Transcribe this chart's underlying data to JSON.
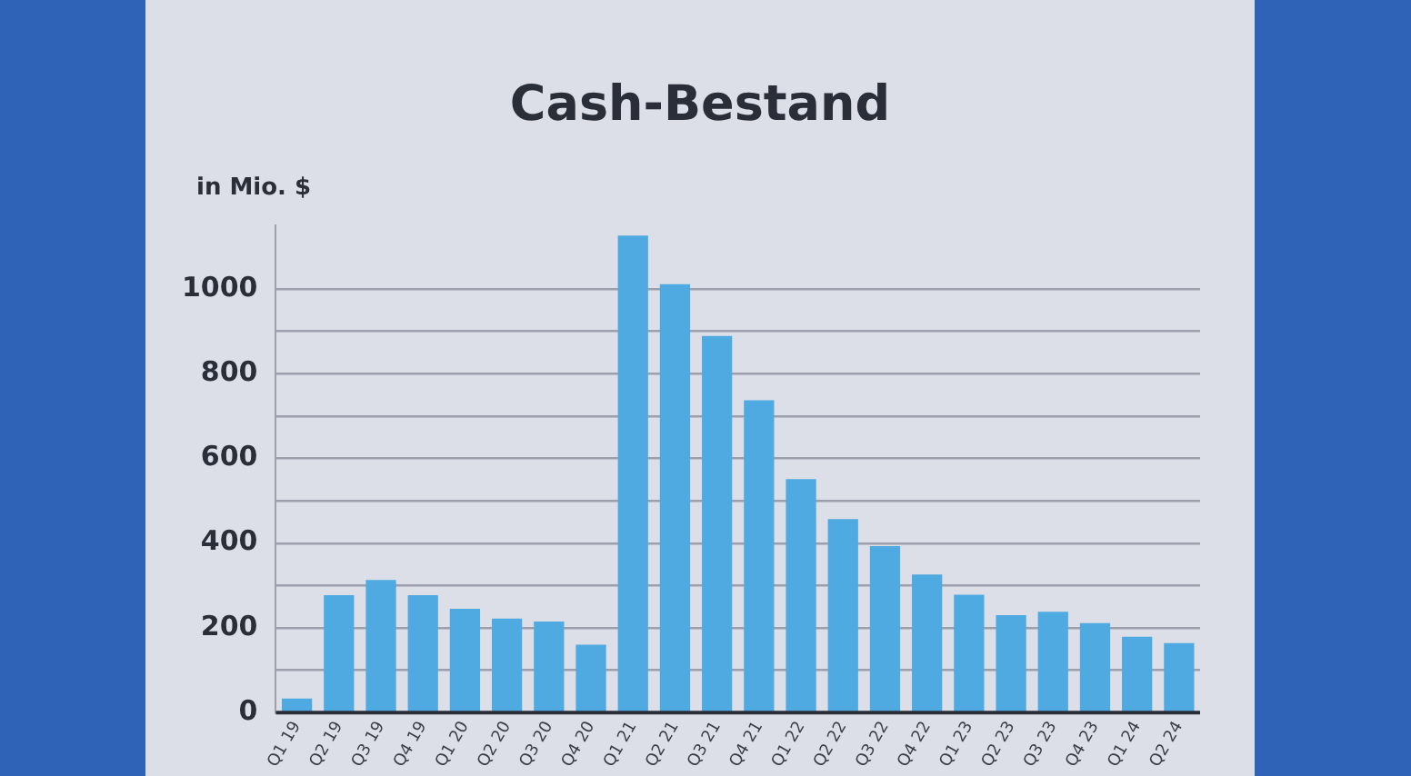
{
  "chart_data": {
    "type": "bar",
    "title": "Cash-Bestand",
    "ylabel": "in Mio. $",
    "categories": [
      "Q1 19",
      "Q2 19",
      "Q3 19",
      "Q4 19",
      "Q1 20",
      "Q2 20",
      "Q3 20",
      "Q4 20",
      "Q1 21",
      "Q2 21",
      "Q3 21",
      "Q4 21",
      "Q1 22",
      "Q2 22",
      "Q3 22",
      "Q4 22",
      "Q1 23",
      "Q2 23",
      "Q3 23",
      "Q4 23",
      "Q1 24",
      "Q2 24"
    ],
    "values": [
      33,
      277,
      313,
      277,
      245,
      222,
      215,
      160,
      1126,
      1011,
      889,
      737,
      551,
      457,
      393,
      326,
      278,
      230,
      238,
      211,
      179,
      164
    ],
    "color": "#50aae2",
    "ylim": [
      0,
      1150
    ],
    "yticks": [
      0,
      {
        "value": 100,
        "label": null
      },
      200,
      {
        "value": 300,
        "label": null
      },
      400,
      {
        "value": 500,
        "label": null
      },
      600,
      {
        "value": 700,
        "label": null
      },
      800,
      {
        "value": 900,
        "label": null
      },
      1000
    ],
    "grid": "y",
    "legend": false
  }
}
